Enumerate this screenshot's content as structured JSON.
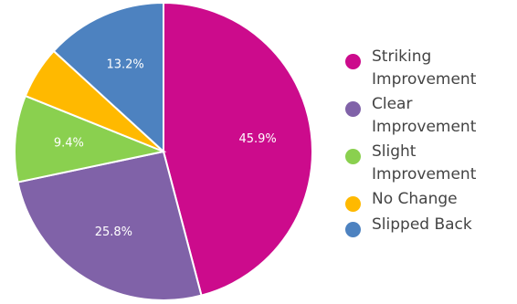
{
  "chart_data": {
    "type": "pie",
    "title": "",
    "legend_position": "right",
    "slices": [
      {
        "label": "Striking Improvement",
        "value": 45.9,
        "value_label": "45.9%",
        "color": "#cc0b8c"
      },
      {
        "label": "Clear Improvement",
        "value": 25.8,
        "value_label": "25.8%",
        "color": "#8062a8"
      },
      {
        "label": "Slight Improvement",
        "value": 9.4,
        "value_label": "9.4%",
        "color": "#8ad04f"
      },
      {
        "label": "No Change",
        "value": 5.7,
        "value_label": "",
        "color": "#ffb900"
      },
      {
        "label": "Slipped Back",
        "value": 13.2,
        "value_label": "13.2%",
        "color": "#4d82c0"
      }
    ]
  }
}
